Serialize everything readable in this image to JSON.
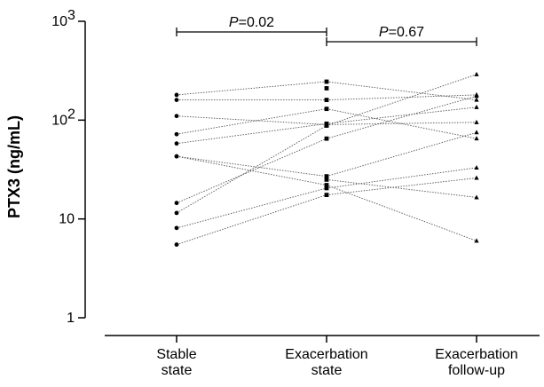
{
  "chart_data": {
    "type": "scatter",
    "ylabel": "PTX3 (ng/mL)",
    "yscale": "log",
    "ylim": [
      1,
      1000
    ],
    "y_ticks": [
      {
        "value": 1,
        "label": "1"
      },
      {
        "value": 10,
        "label": "10"
      },
      {
        "value": 100,
        "label": "10",
        "exp": "2"
      },
      {
        "value": 1000,
        "label": "10",
        "exp": "3"
      }
    ],
    "categories": [
      [
        "Stable",
        "state"
      ],
      [
        "Exacerbation",
        "state"
      ],
      [
        "Exacerbation",
        "follow-up"
      ]
    ],
    "markers": [
      "circle",
      "square",
      "triangle"
    ],
    "subjects": [
      [
        180,
        245,
        160
      ],
      [
        160,
        160,
        180
      ],
      [
        110,
        90,
        95
      ],
      [
        72,
        130,
        65
      ],
      [
        58,
        92,
        135
      ],
      [
        43,
        22,
        6
      ],
      [
        43,
        27,
        75
      ],
      [
        14.5,
        65,
        175
      ],
      [
        11.5,
        88,
        290
      ],
      [
        8.1,
        20.5,
        33
      ],
      [
        5.5,
        17.5,
        26
      ],
      [
        null,
        210,
        null
      ],
      [
        null,
        25,
        16.5
      ]
    ],
    "comparisons": [
      {
        "from": 0,
        "to": 1,
        "italic": "P",
        "value": "=0.02"
      },
      {
        "from": 1,
        "to": 2,
        "italic": "P",
        "value": "=0.67"
      }
    ]
  }
}
